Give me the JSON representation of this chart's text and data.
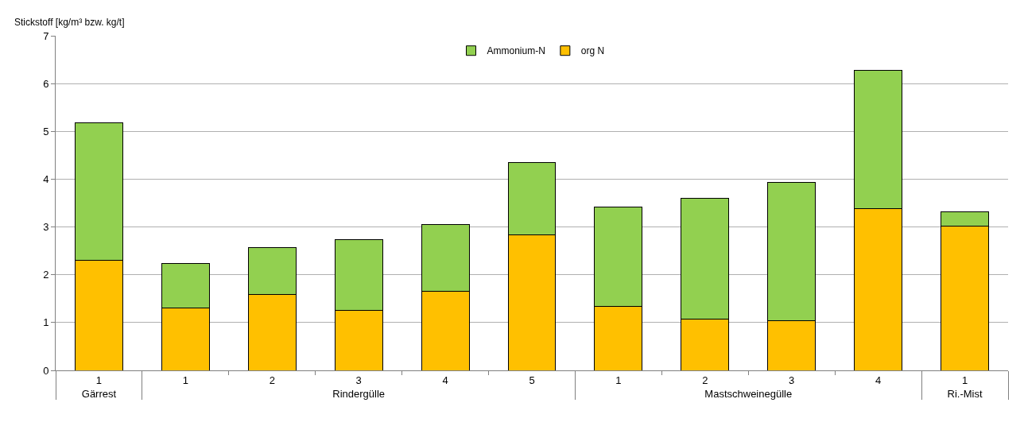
{
  "chart_data": {
    "type": "bar",
    "stacked": true,
    "ylabel": "Stickstoff [kg/m³ bzw. kg/t]",
    "categories": [
      "1",
      "1",
      "2",
      "3",
      "4",
      "5",
      "1",
      "2",
      "3",
      "4",
      "1"
    ],
    "annotations": [
      "Gärrest",
      "Rindergülle",
      "Mastschweinegülle",
      "Ri.-Mist"
    ],
    "series": [
      {
        "name": "org N",
        "color": "#ffc000",
        "values": [
          2.3,
          1.31,
          1.59,
          1.25,
          1.66,
          2.84,
          1.34,
          1.08,
          1.04,
          3.38,
          3.01
        ]
      },
      {
        "name": "Ammonium-N",
        "color": "#92d050",
        "values": [
          2.88,
          0.92,
          0.98,
          1.48,
          1.39,
          1.5,
          2.07,
          2.52,
          2.89,
          2.9,
          0.31
        ]
      }
    ],
    "ylim": [
      0,
      7
    ],
    "yticks": [
      0,
      1,
      2,
      3,
      4,
      5,
      6,
      7
    ],
    "grid": "y",
    "legend": "top"
  }
}
